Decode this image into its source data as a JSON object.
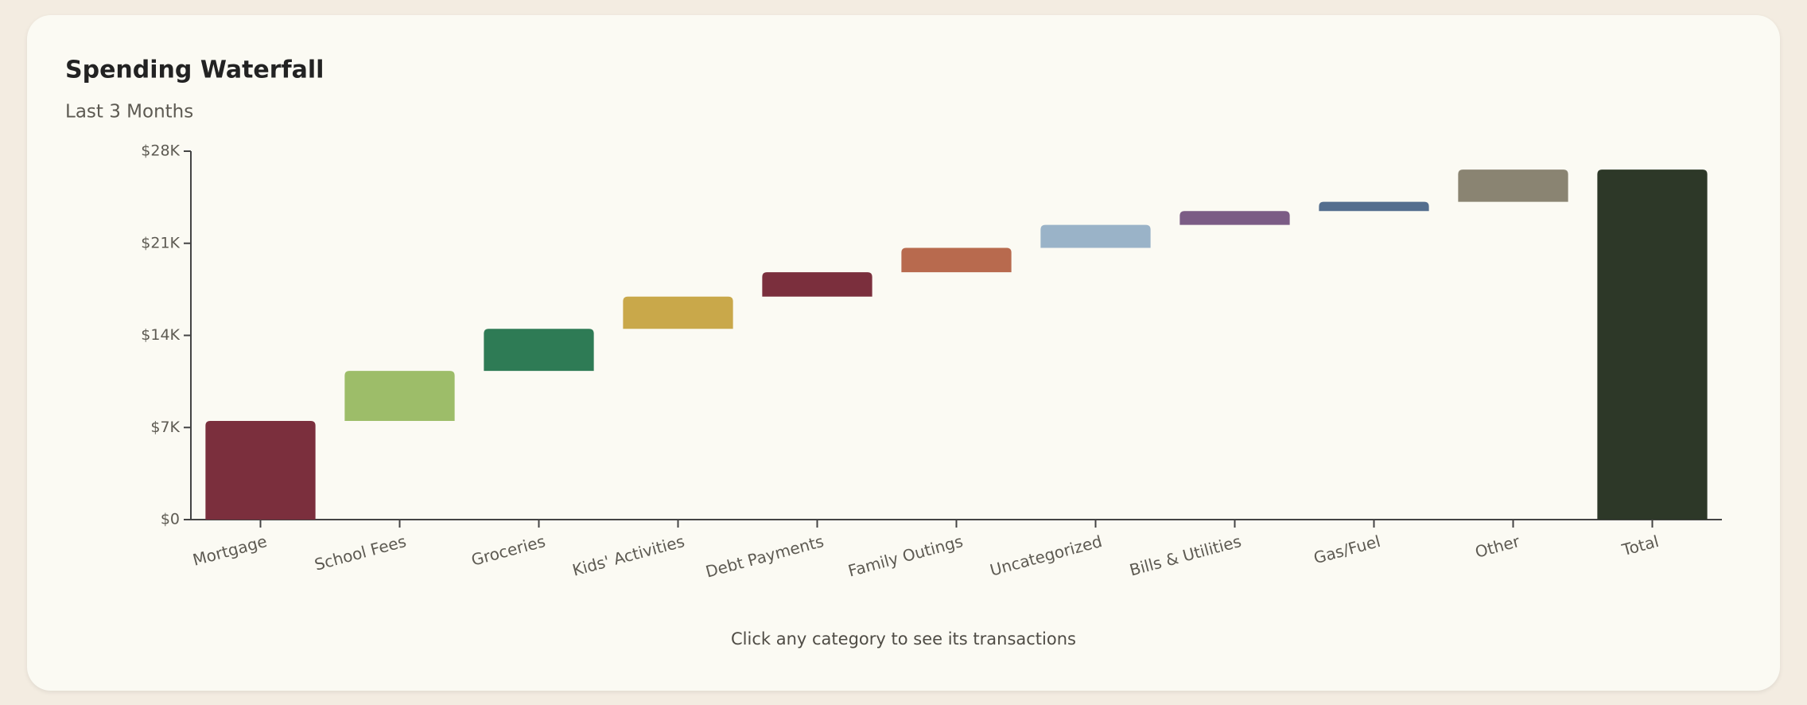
{
  "chart_data": {
    "type": "waterfall",
    "title": "Spending Waterfall",
    "subtitle": "Last 3 Months",
    "note": "Click any category to see its transactions",
    "categories": [
      "Mortgage",
      "School Fees",
      "Groceries",
      "Kids' Activities",
      "Debt Payments",
      "Family Outings",
      "Uncategorized",
      "Bills & Utilities",
      "Gas/Fuel",
      "Other"
    ],
    "values": [
      7500,
      3800,
      3200,
      2450,
      1850,
      1850,
      1750,
      1050,
      700,
      2450
    ],
    "colors": [
      "#7b2f3d",
      "#9dbd69",
      "#2e7b55",
      "#c9a84a",
      "#7b2f3d",
      "#b86a4e",
      "#9ab3c8",
      "#7b5c85",
      "#546e8e",
      "#8a8472"
    ],
    "total_label": "Total",
    "total": 26600,
    "total_color": "#2d3828",
    "ylim": [
      0,
      28000
    ],
    "yticks": [
      {
        "value": 0,
        "label": "$0"
      },
      {
        "value": 7000,
        "label": "$7K"
      },
      {
        "value": 14000,
        "label": "$14K"
      },
      {
        "value": 21000,
        "label": "$21K"
      },
      {
        "value": 28000,
        "label": "$28K"
      }
    ]
  }
}
